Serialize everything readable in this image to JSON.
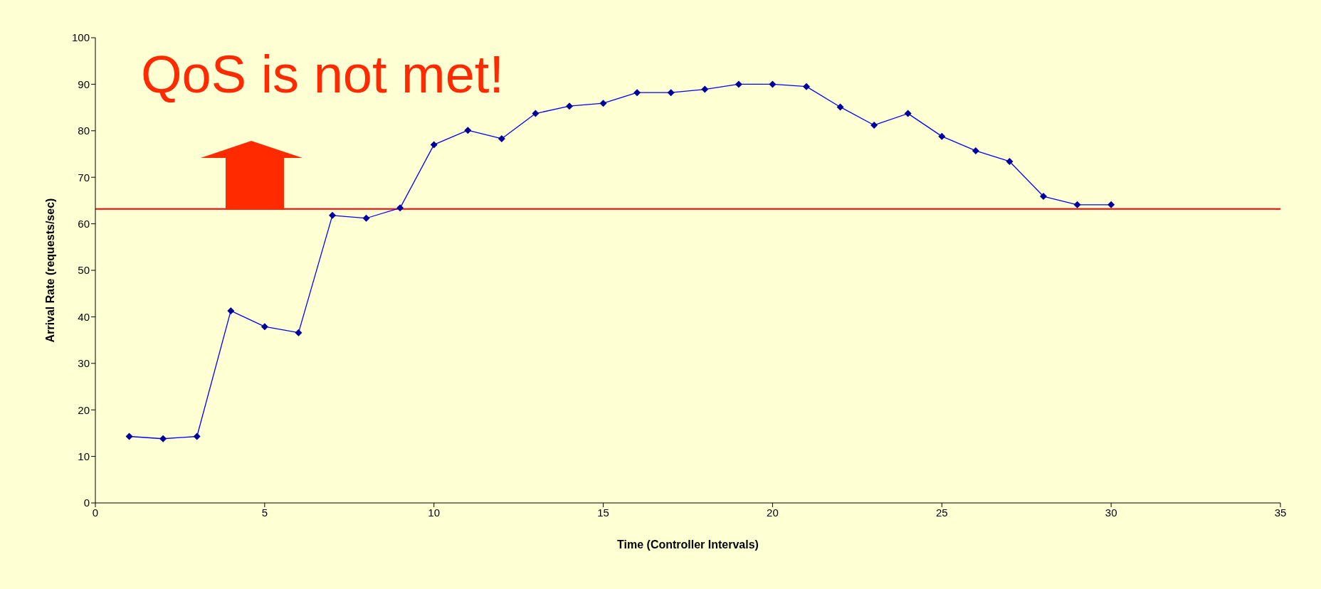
{
  "chart_data": {
    "type": "line",
    "xlabel": "Time (Controller Intervals)",
    "ylabel": "Arrival Rate (requests/sec)",
    "annotations": [
      "QoS is not met!"
    ],
    "x": [
      1,
      2,
      3,
      4,
      5,
      6,
      7,
      8,
      9,
      10,
      11,
      12,
      13,
      14,
      15,
      16,
      17,
      18,
      19,
      20,
      21,
      22,
      23,
      24,
      25,
      26,
      27,
      28,
      29,
      30
    ],
    "series": [
      {
        "color": "#000099",
        "values": [
          14.3,
          13.8,
          14.3,
          41.3,
          37.9,
          36.6,
          61.8,
          61.2,
          63.4,
          77.0,
          80.1,
          78.3,
          83.7,
          85.3,
          85.9,
          88.2,
          88.2,
          88.9,
          90.0,
          90.0,
          89.5,
          85.1,
          81.2,
          83.7,
          78.8,
          75.7,
          73.4,
          65.9,
          64.1,
          64.1
        ]
      }
    ],
    "xlim": [
      0,
      35
    ],
    "xticks": [
      0,
      5,
      10,
      15,
      20,
      25,
      30,
      35
    ],
    "ylim": [
      0,
      100
    ],
    "yticks": [
      0,
      10,
      20,
      30,
      40,
      50,
      60,
      70,
      80,
      90,
      100
    ],
    "ref_lines": [
      {
        "axis": "y",
        "value": 63.2,
        "color": "#ff0000"
      }
    ],
    "marker": "diamond",
    "line_style": "solid",
    "grid": false,
    "legend": false
  }
}
